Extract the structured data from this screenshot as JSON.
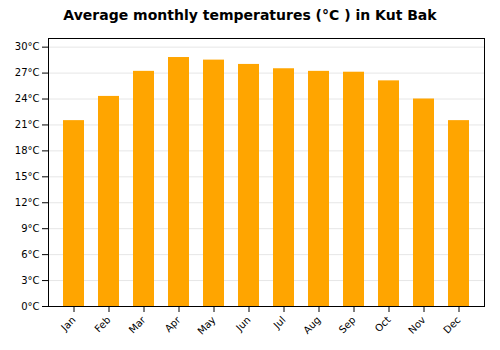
{
  "chart_data": {
    "type": "bar",
    "title": "Average monthly temperatures (°C ) in Kut Bak",
    "categories": [
      "Jan",
      "Feb",
      "Mar",
      "Apr",
      "May",
      "Jun",
      "Jul",
      "Aug",
      "Sep",
      "Oct",
      "Nov",
      "Dec"
    ],
    "values": [
      21.5,
      24.3,
      27.2,
      28.8,
      28.5,
      28.0,
      27.5,
      27.2,
      27.1,
      26.1,
      24.0,
      21.5
    ],
    "color": "#FFA500",
    "ylim": [
      0,
      31
    ],
    "yticks": [
      {
        "value": 0,
        "label": "0°C"
      },
      {
        "value": 3,
        "label": "3°C"
      },
      {
        "value": 6,
        "label": "6°C"
      },
      {
        "value": 9,
        "label": "9°C"
      },
      {
        "value": 12,
        "label": "12°C"
      },
      {
        "value": 15,
        "label": "15°C"
      },
      {
        "value": 18,
        "label": "18°C"
      },
      {
        "value": 21,
        "label": "21°C"
      },
      {
        "value": 24,
        "label": "24°C"
      },
      {
        "value": 27,
        "label": "27°C"
      },
      {
        "value": 30,
        "label": "30°C"
      }
    ],
    "grid": true
  }
}
